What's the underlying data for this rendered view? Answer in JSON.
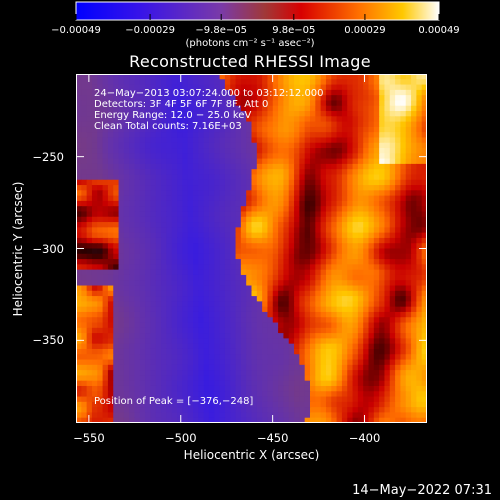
{
  "chart_data": {
    "type": "heatmap",
    "title": "Reconstructed RHESSI Image",
    "xlabel": "Heliocentric X (arcsec)",
    "ylabel": "Heliocentric Y (arcsec)",
    "xlim": [
      -557,
      -366
    ],
    "ylim": [
      -395,
      -205
    ],
    "x_ticks": [
      "−550",
      "−500",
      "−450",
      "−400"
    ],
    "x_tick_values": [
      -550,
      -500,
      -450,
      -400
    ],
    "y_ticks": [
      "−250",
      "−300",
      "−350"
    ],
    "y_tick_values": [
      -250,
      -300,
      -350
    ],
    "colorbar": {
      "ticks": [
        "−0.00049",
        "−0.00029",
        "−9.8e−05",
        "9.8e−05",
        "0.00029",
        "0.00049"
      ],
      "tick_values": [
        -0.00049,
        -0.00029,
        -9.8e-05,
        9.8e-05,
        0.00029,
        0.00049
      ],
      "range": [
        -0.00049,
        0.00049
      ],
      "units": "(photons cm⁻² s⁻¹ asec⁻²)"
    },
    "annotations": [
      "24−May−2013 03:07:24.000 to 03:12:12.000",
      "Detectors: 3F 4F 5F 6F 7F 8F, Att 0",
      "Energy Range: 12.0 − 25.0 keV",
      "Clean     Total counts: 7.16E+03"
    ],
    "peak_label": "Position of Peak = [−376,−248]",
    "peak_position": [
      -376,
      -248
    ],
    "grid": false
  },
  "colors": {
    "background": "#000000",
    "colormap": [
      "#0000ff",
      "#5a24d6",
      "#7a3cb0",
      "#b04848",
      "#ff0000",
      "#ff8000",
      "#ffd000",
      "#ffffff"
    ]
  },
  "footer": {
    "timestamp": "14−May−2022 07:31"
  }
}
